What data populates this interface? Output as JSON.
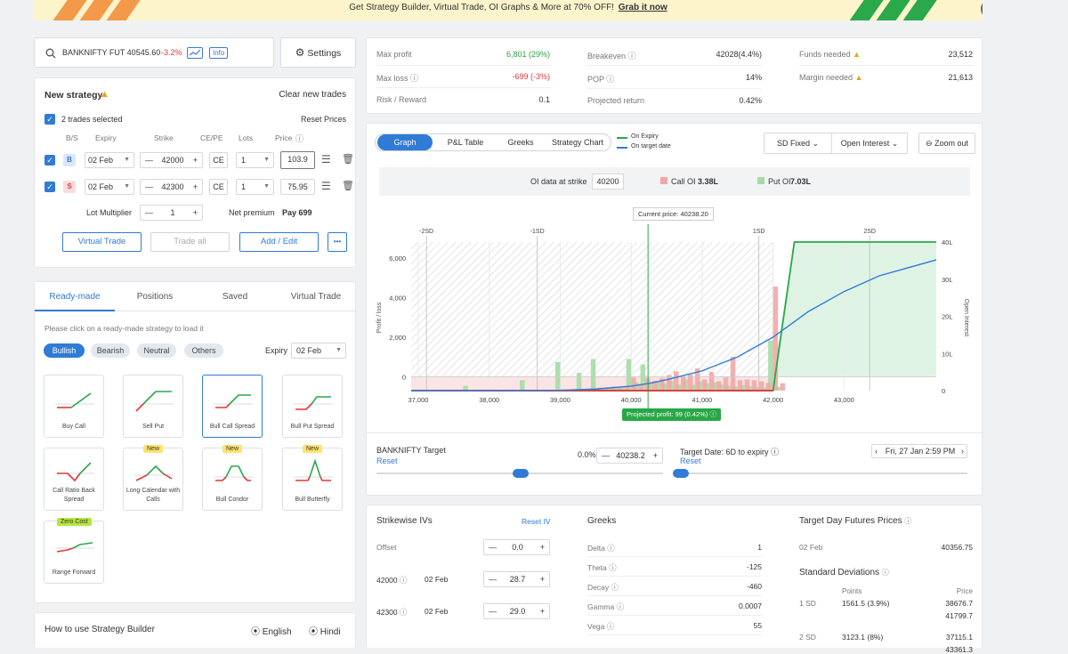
{
  "banner": {
    "text": "Get Strategy Builder, Virtual Trade, OI Graphs & More at 70% OFF!",
    "link": "Grab it now",
    "close": "×"
  },
  "search": {
    "symbol": "BANKNIFTY FUT 40545.60",
    "change": "-3.2%",
    "info": "Info"
  },
  "settings_label": "Settings",
  "strategy": {
    "title": "New strategy",
    "clear": "Clear new trades",
    "selected": "2 trades selected",
    "reset_prices": "Reset Prices",
    "cols": [
      "B/S",
      "Expiry",
      "Strike",
      "CE/PE",
      "Lots",
      "Price"
    ],
    "trades": [
      {
        "bs": "B",
        "expiry": "02 Feb",
        "strike": "42000",
        "type": "CE",
        "lots": "1",
        "price": "103.9"
      },
      {
        "bs": "S",
        "expiry": "02 Feb",
        "strike": "42300",
        "type": "CE",
        "lots": "1",
        "price": "75.95"
      }
    ],
    "lot_multiplier_label": "Lot Multiplier",
    "lot_multiplier": "1",
    "net_premium_label": "Net premium",
    "net_premium": "Pay 699",
    "virtual_trade": "Virtual Trade",
    "trade_all": "Trade all",
    "add_edit": "Add / Edit",
    "more": "•••"
  },
  "readymade": {
    "tabs": [
      "Ready-made",
      "Positions",
      "Saved",
      "Virtual Trade"
    ],
    "hint": "Please click on a ready-made strategy to load it",
    "filters": [
      "Bullish",
      "Bearish",
      "Neutral",
      "Others"
    ],
    "expiry_label": "Expiry",
    "expiry": "02 Feb",
    "tiles": [
      {
        "label": "Buy Call",
        "tag": ""
      },
      {
        "label": "Sell Put",
        "tag": ""
      },
      {
        "label": "Bull Call Spread",
        "tag": ""
      },
      {
        "label": "Bull Put Spread",
        "tag": ""
      },
      {
        "label": "Call Ratio Back Spread",
        "tag": ""
      },
      {
        "label": "Long Calendar with Calls",
        "tag": "New"
      },
      {
        "label": "Bull Condor",
        "tag": "New"
      },
      {
        "label": "Bull Butterfly",
        "tag": "New"
      },
      {
        "label": "Range Forward",
        "tag": "Zero Cost"
      }
    ]
  },
  "howto": {
    "title": "How to use Strategy Builder",
    "english": "English",
    "hindi": "Hindi"
  },
  "stats": {
    "max_profit_label": "Max profit",
    "max_profit": "6,801 (29%)",
    "max_loss_label": "Max loss",
    "max_loss": "-699 (-3%)",
    "rr_label": "Risk / Reward",
    "rr": "0.1",
    "breakeven_label": "Breakeven",
    "breakeven": "42028(4.4%)",
    "pop_label": "POP",
    "pop": "14%",
    "proj_label": "Projected return",
    "proj": "0.42%",
    "funds_label": "Funds needed",
    "funds": "23,512",
    "margin_label": "Margin needed",
    "margin": "21,613"
  },
  "graph": {
    "tabs": [
      "Graph",
      "P&L Table",
      "Greeks",
      "Strategy Chart"
    ],
    "legend_expiry": "On Expiry",
    "legend_target": "On target date",
    "sd_fixed": "SD Fixed",
    "open_interest": "Open Interest",
    "zoom_out": "Zoom out",
    "oi_label": "OI data at strike",
    "oi_strike": "40200",
    "call_oi_label": "Call OI",
    "call_oi": "3.38L",
    "put_oi_label": "Put OI",
    "put_oi": "7.03L",
    "current_price": "Current price: 40238.20",
    "projected_profit": "Projected profit: 99 (0.42%)"
  },
  "chart_data": {
    "type": "bar",
    "ylabel": "Profit / loss",
    "y2label": "Open Interest",
    "x_ticks": [
      "37,000",
      "38,000",
      "39,000",
      "40,000",
      "41,000",
      "42,000",
      "43,000"
    ],
    "xlim": [
      36900,
      44300
    ],
    "y_ticks": [
      "6,000",
      "4,000",
      "2,000",
      "0"
    ],
    "ylim": [
      -699,
      6801
    ],
    "y2_ticks": [
      "40L",
      "30L",
      "20L",
      "10L",
      "0"
    ],
    "y2lim": [
      0,
      40
    ],
    "sd_labels": [
      "-2SD",
      "-1SD",
      "1SD",
      "2SD"
    ],
    "sd_values": [
      37115,
      38677,
      41800,
      43361
    ],
    "current_price": 40238.2,
    "series": [
      {
        "name": "On Expiry",
        "x": [
          36900,
          42000,
          42300,
          44300
        ],
        "y": [
          -699,
          -699,
          6801,
          6801
        ]
      },
      {
        "name": "On target date",
        "x": [
          36900,
          38000,
          39000,
          39500,
          40000,
          40238,
          40500,
          41000,
          41500,
          42000,
          42500,
          43000,
          43500,
          44300
        ],
        "y": [
          -699,
          -697,
          -680,
          -620,
          -470,
          -340,
          -150,
          300,
          1000,
          2000,
          3300,
          4300,
          5100,
          5900
        ]
      },
      {
        "name": "Call OI",
        "strikes": [
          39500,
          39600,
          39700,
          39800,
          39900,
          40000,
          40100,
          40200,
          40300,
          40400,
          40500,
          40600,
          40700,
          40800,
          40900,
          41000,
          41100,
          41200,
          41300,
          41400,
          41500,
          41600,
          41700,
          41800,
          41900,
          42000,
          42100
        ],
        "values": [
          0.6,
          0.6,
          0.8,
          0.8,
          1.2,
          3.5,
          1.8,
          3.38,
          2.6,
          3.3,
          4.2,
          5.2,
          3.6,
          4.3,
          6.0,
          3.0,
          5.0,
          2.5,
          3.5,
          9.1,
          2.8,
          3.0,
          2.8,
          2.5,
          2.1,
          28.0,
          2.0
        ]
      },
      {
        "name": "Put OI",
        "strikes": [
          37700,
          38500,
          39000,
          39300,
          39500,
          39600,
          39700,
          39800,
          39900,
          40000,
          40100,
          40200,
          40300,
          40400,
          40500,
          40600,
          40700,
          40800,
          40900,
          41000,
          41100,
          41200,
          41300,
          41400,
          41500,
          41600,
          41700,
          41800,
          41900,
          42000,
          42100
        ],
        "values": [
          1.3,
          2.8,
          7.7,
          4.8,
          8.5,
          0.8,
          0.9,
          1.1,
          0.9,
          8.5,
          2.3,
          7.03,
          2.0,
          2.5,
          2.0,
          2.6,
          1.7,
          3.0,
          1.6,
          2.5,
          2.0,
          2.2,
          1.7,
          1.3,
          1.1,
          1.5,
          1.2,
          1.0,
          0.9,
          13.5,
          1.0
        ]
      }
    ]
  },
  "target": {
    "label": "BANKNIFTY Target",
    "reset": "Reset",
    "pct": "0.0%",
    "value": "40238.2",
    "date_label": "Target Date: 6D to expiry",
    "date_reset": "Reset",
    "date": "Fri, 27 Jan 2:59 PM"
  },
  "ivs": {
    "title": "Strikewise IVs",
    "reset": "Reset IV",
    "offset_label": "Offset",
    "offset": "0.0",
    "rows": [
      {
        "strike": "42000",
        "expiry": "02 Feb",
        "iv": "28.7"
      },
      {
        "strike": "42300",
        "expiry": "02 Feb",
        "iv": "29.0"
      }
    ]
  },
  "greeks": {
    "title": "Greeks",
    "rows": [
      {
        "name": "Delta",
        "value": "1"
      },
      {
        "name": "Theta",
        "value": "-125"
      },
      {
        "name": "Decay",
        "value": "-460"
      },
      {
        "name": "Gamma",
        "value": "0.0007"
      },
      {
        "name": "Vega",
        "value": "55"
      }
    ]
  },
  "futures": {
    "title": "Target Day Futures Prices",
    "expiry": "02 Feb",
    "price": "40356.75",
    "sd_title": "Standard Deviations",
    "points_label": "Points",
    "price_label": "Price",
    "rows": [
      {
        "sd": "1 SD",
        "points": "1561.5 (3.9%)",
        "price1": "38676.7",
        "price2": "41799.7"
      },
      {
        "sd": "2 SD",
        "points": "3123.1 (8%)",
        "price1": "37115.1",
        "price2": "43361.3"
      }
    ]
  },
  "colors": {
    "accent": "#2f7bd6",
    "green": "#27a745",
    "red": "#e0373b",
    "call_oi": "#f2a7a7",
    "put_oi": "#a5dca5",
    "expiry_line": "#2aa84a",
    "target_line": "#2f7bd6"
  }
}
